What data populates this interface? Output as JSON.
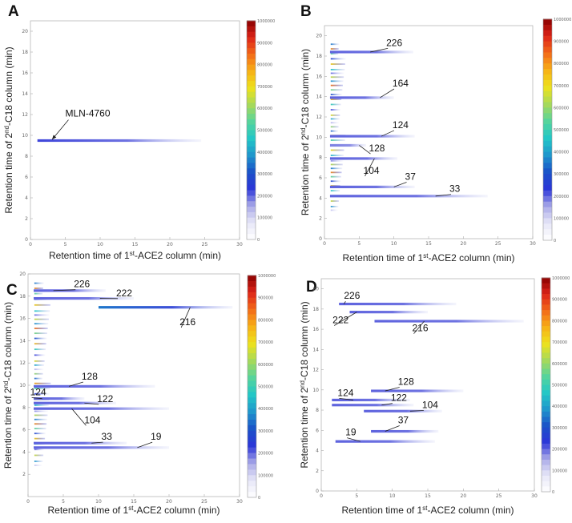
{
  "colors": {
    "cmap": [
      "#ffffff",
      "#e6e6f7",
      "#a9a9e8",
      "#2c35d8",
      "#1a52c8",
      "#1f96cc",
      "#22c7c7",
      "#57d49b",
      "#a7d95a",
      "#ede21c",
      "#f7b117",
      "#f36a18",
      "#dd2418",
      "#8b0000"
    ]
  },
  "chart_data": [
    {
      "type": "heatmap",
      "panel": "A",
      "title": "A",
      "xlabel_pre": "Retention time of 1",
      "xlabel_sup": "st",
      "xlabel_post": "-ACE2 column (min)",
      "ylabel_pre": "Retention time of 2",
      "ylabel_sup": "nd",
      "ylabel_post": "-C18  column (min)",
      "xlim": [
        0,
        30
      ],
      "ylim": [
        0,
        21
      ],
      "xticks": [
        "0",
        "5",
        "10",
        "15",
        "20",
        "25",
        "30"
      ],
      "yticks": [
        "0",
        "2",
        "4",
        "6",
        "8",
        "10",
        "12",
        "14",
        "16",
        "18",
        "20"
      ],
      "colorbar_ticks": [
        "0",
        "100000",
        "200000",
        "300000",
        "400000",
        "500000",
        "600000",
        "700000",
        "800000",
        "900000",
        "1000000"
      ],
      "streaks": [
        {
          "y": 9.5,
          "x0": 1.0,
          "x1": 24.5,
          "level": 0.2,
          "hot": 0.22
        }
      ],
      "annotations": [
        {
          "text": "MLN-4760",
          "x": 5.0,
          "y": 11.8,
          "tx": 3.1,
          "ty": 9.6,
          "arrow": true
        }
      ]
    },
    {
      "type": "heatmap",
      "panel": "B",
      "title": "B",
      "xlabel_pre": "Retention time of 1",
      "xlabel_sup": "st",
      "xlabel_post": "-ACE2 column (min)",
      "ylabel_pre": "Retention time of 2",
      "ylabel_sup": "nd",
      "ylabel_post": "-C18  column (min)",
      "xlim": [
        0,
        30
      ],
      "ylim": [
        0,
        21
      ],
      "xticks": [
        "0",
        "5",
        "10",
        "15",
        "20",
        "25",
        "30"
      ],
      "yticks": [
        "0",
        "2",
        "4",
        "6",
        "8",
        "10",
        "12",
        "14",
        "16",
        "18",
        "20"
      ],
      "colorbar_ticks": [
        "0",
        "100000",
        "200000",
        "300000",
        "400000",
        "500000",
        "600000",
        "700000",
        "800000",
        "900000",
        "1000000"
      ],
      "streaks": [
        {
          "y": 18.4,
          "x0": 0.8,
          "x1": 12.8,
          "level": 0.2
        },
        {
          "y": 13.9,
          "x0": 0.8,
          "x1": 10.0,
          "level": 0.2
        },
        {
          "y": 10.1,
          "x0": 0.8,
          "x1": 13.0,
          "level": 0.2
        },
        {
          "y": 9.2,
          "x0": 0.8,
          "x1": 6.0,
          "level": 0.18
        },
        {
          "y": 7.9,
          "x0": 0.8,
          "x1": 10.5,
          "level": 0.2
        },
        {
          "y": 5.1,
          "x0": 0.8,
          "x1": 13.0,
          "level": 0.2
        },
        {
          "y": 4.2,
          "x0": 0.8,
          "x1": 23.5,
          "level": 0.2
        }
      ],
      "cluster_x": [
        0.9,
        3.2
      ],
      "cluster_y": [
        2.8,
        19.2
      ],
      "annotations": [
        {
          "text": "226",
          "x": 8.9,
          "y": 19.0,
          "tx": 6.6,
          "ty": 18.4
        },
        {
          "text": "164",
          "x": 9.8,
          "y": 15.0,
          "tx": 8.0,
          "ty": 13.9
        },
        {
          "text": "124",
          "x": 9.8,
          "y": 10.9,
          "tx": 8.2,
          "ty": 10.1
        },
        {
          "text": "128",
          "x": 6.4,
          "y": 8.6,
          "tx": 5.0,
          "ty": 9.2
        },
        {
          "text": "104",
          "x": 5.6,
          "y": 6.4,
          "tx": 7.2,
          "ty": 7.9
        },
        {
          "text": "37",
          "x": 11.6,
          "y": 5.8,
          "tx": 10.0,
          "ty": 5.1
        },
        {
          "text": "33",
          "x": 18.0,
          "y": 4.6,
          "tx": 16.0,
          "ty": 4.2
        }
      ]
    },
    {
      "type": "heatmap",
      "panel": "C",
      "title": "C",
      "xlabel_pre": "Retention time of 1",
      "xlabel_sup": "st",
      "xlabel_post": "-ACE2 column (min)",
      "ylabel_pre": "Retention time of 2",
      "ylabel_sup": "nd",
      "ylabel_post": "-C18  column (min)",
      "xlim": [
        0,
        30
      ],
      "ylim": [
        0,
        20
      ],
      "xticks": [
        "0",
        "5",
        "10",
        "15",
        "20",
        "25",
        "30"
      ],
      "yticks": [
        "2",
        "4",
        "6",
        "8",
        "10",
        "12",
        "14",
        "16",
        "18",
        "20"
      ],
      "colorbar_ticks": [
        "0",
        "100000",
        "200000",
        "300000",
        "400000",
        "500000",
        "600000",
        "700000",
        "800000",
        "900000",
        "1000000"
      ],
      "streaks": [
        {
          "y": 18.5,
          "x0": 0.8,
          "x1": 11.0,
          "level": 0.2
        },
        {
          "y": 17.8,
          "x0": 0.8,
          "x1": 15.0,
          "level": 0.2
        },
        {
          "y": 17.0,
          "x0": 10.0,
          "x1": 29.0,
          "level": 0.25,
          "hot": 0.35
        },
        {
          "y": 9.9,
          "x0": 0.8,
          "x1": 18.0,
          "level": 0.2
        },
        {
          "y": 8.8,
          "x0": 0.8,
          "x1": 8.0,
          "level": 0.2
        },
        {
          "y": 8.4,
          "x0": 0.8,
          "x1": 12.5,
          "level": 0.2
        },
        {
          "y": 7.9,
          "x0": 0.8,
          "x1": 20.0,
          "level": 0.2
        },
        {
          "y": 4.8,
          "x0": 0.8,
          "x1": 14.0,
          "level": 0.2
        },
        {
          "y": 4.4,
          "x0": 0.8,
          "x1": 20.0,
          "level": 0.2
        }
      ],
      "cluster_x": [
        0.9,
        3.4
      ],
      "cluster_y": [
        2.8,
        19.2
      ],
      "annotations": [
        {
          "text": "226",
          "x": 6.5,
          "y": 18.8,
          "tx": 3.6,
          "ty": 18.5
        },
        {
          "text": "222",
          "x": 12.5,
          "y": 18.0,
          "tx": 10.2,
          "ty": 17.8
        },
        {
          "text": "216",
          "x": 21.5,
          "y": 15.4,
          "tx": 23.0,
          "ty": 17.0
        },
        {
          "text": "128",
          "x": 7.6,
          "y": 10.5,
          "tx": 5.8,
          "ty": 9.9
        },
        {
          "text": "124",
          "x": 0.3,
          "y": 9.1,
          "tx": 2.0,
          "ty": 8.8
        },
        {
          "text": "122",
          "x": 9.8,
          "y": 8.5,
          "tx": 8.0,
          "ty": 8.4
        },
        {
          "text": "104",
          "x": 8.0,
          "y": 6.6,
          "tx": 6.2,
          "ty": 7.9
        },
        {
          "text": "33",
          "x": 10.4,
          "y": 5.1,
          "tx": 9.0,
          "ty": 4.8
        },
        {
          "text": "19",
          "x": 17.4,
          "y": 5.1,
          "tx": 15.5,
          "ty": 4.4
        }
      ]
    },
    {
      "type": "heatmap",
      "panel": "D",
      "title": "D",
      "xlabel_pre": "Retention time of 1",
      "xlabel_sup": "st",
      "xlabel_post": "-ACE2 column (min)",
      "ylabel_pre": "Retention time of 2",
      "ylabel_sup": "nd",
      "ylabel_post": "-C18  column (min)",
      "xlim": [
        0,
        30
      ],
      "ylim": [
        0,
        21
      ],
      "xticks": [
        "0",
        "5",
        "10",
        "15",
        "20",
        "25",
        "30"
      ],
      "yticks": [
        "0",
        "2",
        "4",
        "6",
        "8",
        "10",
        "12",
        "14",
        "16",
        "18",
        "20"
      ],
      "colorbar_ticks": [
        "0",
        "100000",
        "200000",
        "300000",
        "400000",
        "500000",
        "600000",
        "700000",
        "800000",
        "900000",
        "1000000"
      ],
      "streaks": [
        {
          "y": 18.5,
          "x0": 2.5,
          "x1": 19.0,
          "level": 0.2
        },
        {
          "y": 17.7,
          "x0": 4.0,
          "x1": 15.0,
          "level": 0.2
        },
        {
          "y": 16.8,
          "x0": 7.5,
          "x1": 28.5,
          "level": 0.2
        },
        {
          "y": 9.9,
          "x0": 7.0,
          "x1": 20.0,
          "level": 0.2
        },
        {
          "y": 9.0,
          "x0": 1.5,
          "x1": 12.5,
          "level": 0.2
        },
        {
          "y": 8.5,
          "x0": 1.5,
          "x1": 13.0,
          "level": 0.2
        },
        {
          "y": 7.9,
          "x0": 6.0,
          "x1": 17.0,
          "level": 0.2
        },
        {
          "y": 5.9,
          "x0": 7.0,
          "x1": 16.5,
          "level": 0.2
        },
        {
          "y": 4.9,
          "x0": 2.0,
          "x1": 16.0,
          "level": 0.2
        }
      ],
      "annotations": [
        {
          "text": "226",
          "x": 3.2,
          "y": 19.0,
          "tx": 3.2,
          "ty": 18.5
        },
        {
          "text": "222",
          "x": 1.6,
          "y": 16.6,
          "tx": 5.0,
          "ty": 17.7
        },
        {
          "text": "216",
          "x": 12.8,
          "y": 15.8,
          "tx": 14.5,
          "ty": 16.8
        },
        {
          "text": "128",
          "x": 10.8,
          "y": 10.5,
          "tx": 9.0,
          "ty": 9.9
        },
        {
          "text": "124",
          "x": 2.3,
          "y": 9.4,
          "tx": 4.5,
          "ty": 9.0
        },
        {
          "text": "122",
          "x": 9.8,
          "y": 8.9,
          "tx": 8.5,
          "ty": 8.5
        },
        {
          "text": "104",
          "x": 14.2,
          "y": 8.2,
          "tx": 12.5,
          "ty": 7.9
        },
        {
          "text": "37",
          "x": 10.8,
          "y": 6.7,
          "tx": 9.0,
          "ty": 5.9
        },
        {
          "text": "19",
          "x": 3.4,
          "y": 5.5,
          "tx": 5.5,
          "ty": 4.9
        }
      ]
    }
  ]
}
